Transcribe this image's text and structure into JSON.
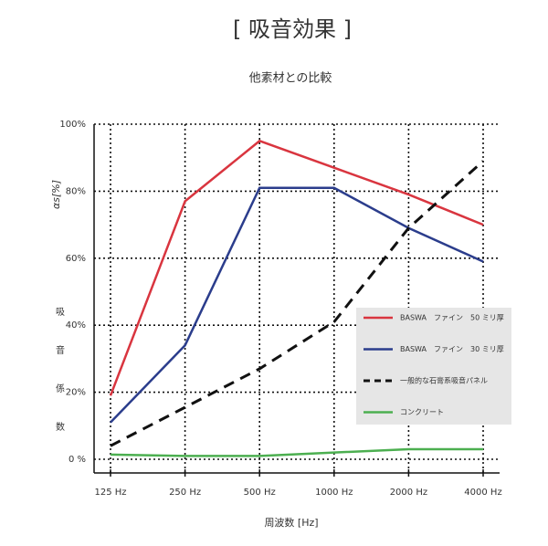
{
  "chart_data": {
    "type": "line",
    "title": "[ 吸音効果 ]",
    "subtitle": "他素材との比較",
    "y_label": "αs[%]",
    "y_label_chars": [
      "吸",
      "音",
      "係",
      "数"
    ],
    "x_label": "周波数 [Hz]",
    "categories": [
      "125 Hz",
      "250 Hz",
      "500 Hz",
      "1000 Hz",
      "2000 Hz",
      "4000 Hz"
    ],
    "ylim": [
      0,
      100
    ],
    "yticks": [
      {
        "value": 0,
        "label": "0 %"
      },
      {
        "value": 20,
        "label": "20%"
      },
      {
        "value": 40,
        "label": "40%"
      },
      {
        "value": 60,
        "label": "60%"
      },
      {
        "value": 80,
        "label": "80%"
      },
      {
        "value": 100,
        "label": "100%"
      }
    ],
    "grid": true,
    "legend": "right",
    "series": [
      {
        "name": "BASWA　ファイン　50 ミリ厚",
        "color": "#d9353f",
        "style": "solid",
        "values": [
          19,
          77,
          95,
          87,
          79,
          70
        ]
      },
      {
        "name": "BASWA　ファイン　30 ミリ厚",
        "color": "#2b3d8c",
        "style": "solid",
        "values": [
          11,
          34,
          81,
          81,
          69,
          59
        ]
      },
      {
        "name": "一般的な石膏系吸音パネル",
        "color": "#111111",
        "style": "dashed",
        "values": [
          4,
          15.5,
          27,
          41,
          69,
          89
        ]
      },
      {
        "name": "コンクリート",
        "color": "#4caf50",
        "style": "solid",
        "values": [
          1.4,
          1,
          1,
          2,
          3,
          3
        ]
      }
    ]
  }
}
